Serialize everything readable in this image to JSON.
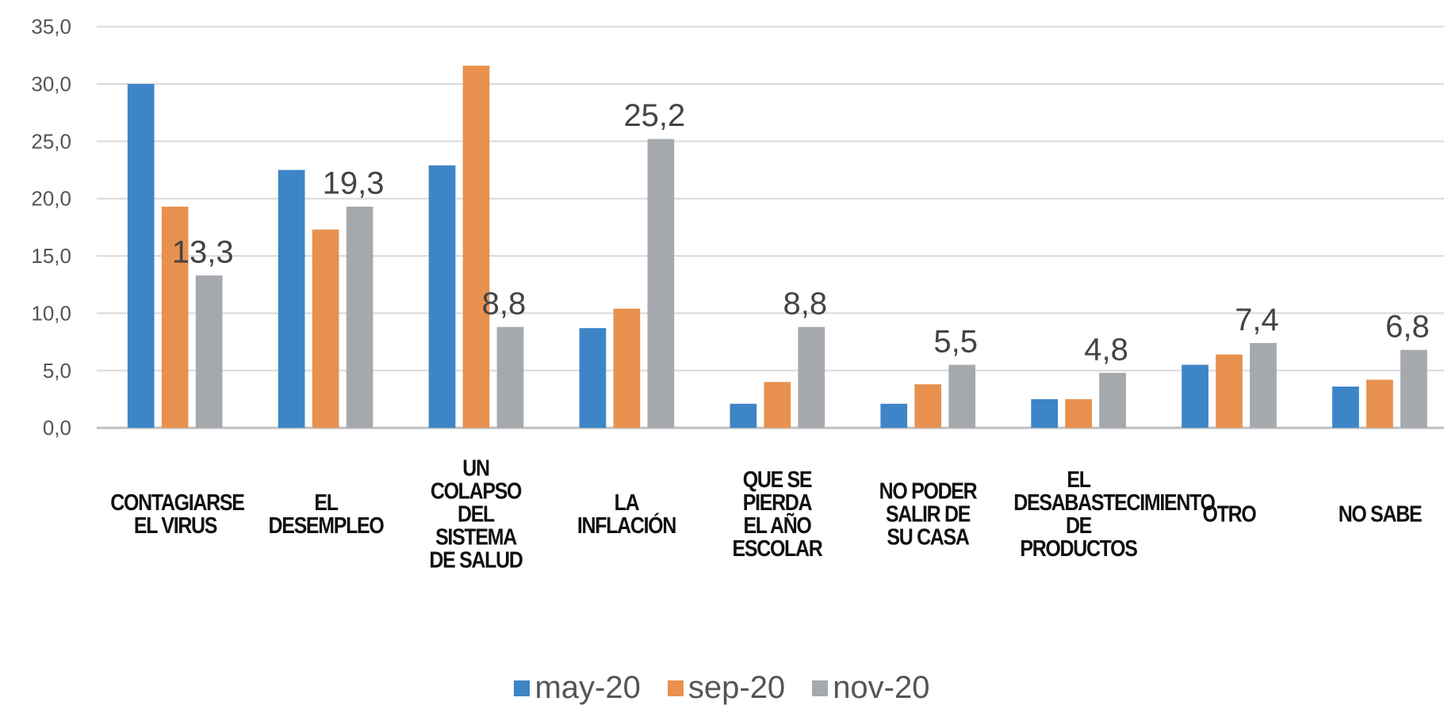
{
  "chart_data": {
    "type": "bar",
    "categories": [
      "CONTAGIARSE\nEL VIRUS",
      "EL\nDESEMPLEO",
      "UN\nCOLAPSO\nDEL\nSISTEMA\nDE SALUD",
      "LA\nINFLACIÓN",
      "QUE SE\nPIERDA\nEL AÑO\nESCOLAR",
      "NO PODER\nSALIR DE\nSU CASA",
      "EL\nDESABASTECIMIENTO\nDE PRODUCTOS",
      "OTRO",
      "NO SABE"
    ],
    "series": [
      {
        "name": "may-20",
        "color": "#3d85c6",
        "values": [
          30.0,
          22.5,
          22.9,
          8.7,
          2.1,
          2.1,
          2.5,
          5.5,
          3.6
        ]
      },
      {
        "name": "sep-20",
        "color": "#e8914f",
        "values": [
          19.3,
          17.3,
          31.6,
          10.4,
          4.0,
          3.8,
          2.5,
          6.4,
          4.2
        ]
      },
      {
        "name": "nov-20",
        "color": "#a5a8ad",
        "values": [
          13.3,
          19.3,
          8.8,
          25.2,
          8.8,
          5.5,
          4.8,
          7.4,
          6.8
        ],
        "value_labels": [
          "13,3",
          "19,3",
          "8,8",
          "25,2",
          "8,8",
          "5,5",
          "4,8",
          "7,4",
          "6,8"
        ]
      }
    ],
    "ylim": [
      0,
      35
    ],
    "yticks": [
      {
        "value": 0,
        "label": "0,0"
      },
      {
        "value": 5,
        "label": "5,0"
      },
      {
        "value": 10,
        "label": "10,0"
      },
      {
        "value": 15,
        "label": "15,0"
      },
      {
        "value": 20,
        "label": "20,0"
      },
      {
        "value": 25,
        "label": "25,0"
      },
      {
        "value": 30,
        "label": "30,0"
      },
      {
        "value": 35,
        "label": "35,0"
      }
    ],
    "grid": true
  }
}
